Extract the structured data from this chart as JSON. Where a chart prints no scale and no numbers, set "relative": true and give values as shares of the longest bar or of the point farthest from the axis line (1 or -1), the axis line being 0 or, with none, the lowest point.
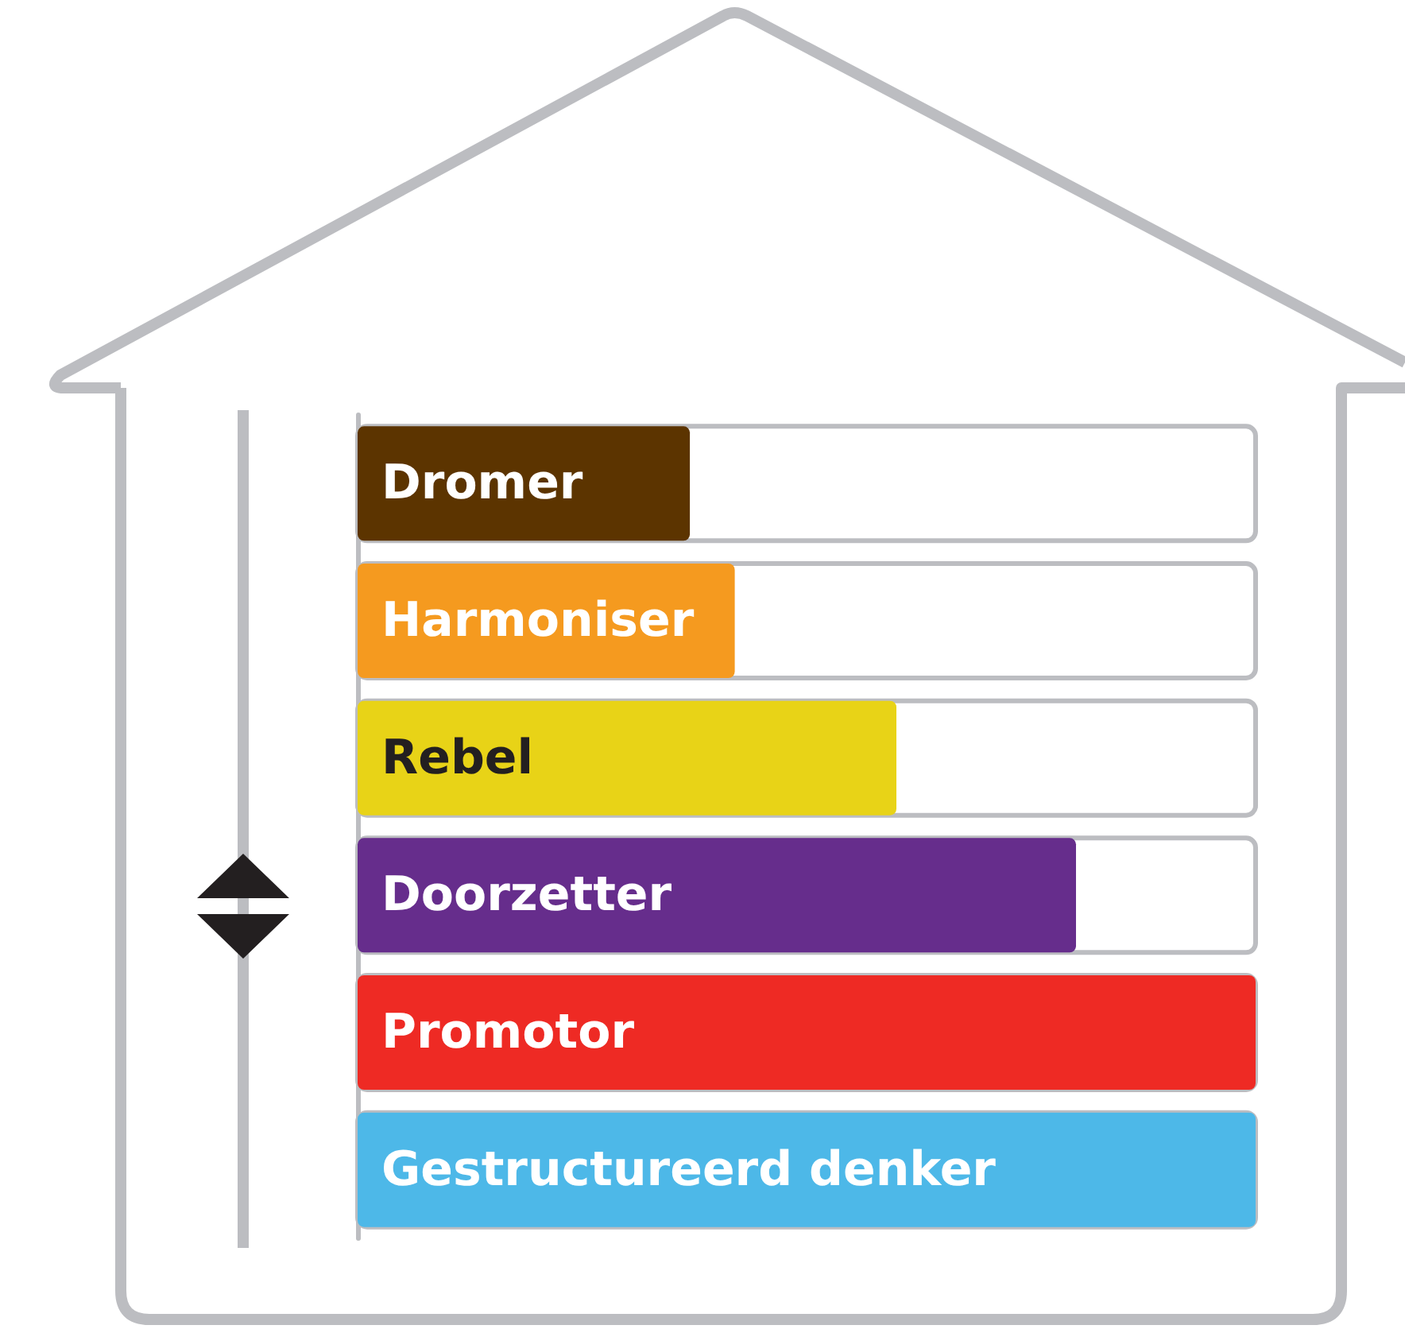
{
  "chart_data": {
    "type": "bar",
    "orientation": "horizontal",
    "relative": true,
    "categories": [
      "Dromer",
      "Harmoniser",
      "Rebel",
      "Doorzetter",
      "Promotor",
      "Gestructureerd denker"
    ],
    "values": [
      0.37,
      0.42,
      0.6,
      0.8,
      1,
      1
    ],
    "colors": [
      "#5c3400",
      "#f59a1f",
      "#e8d317",
      "#662d8c",
      "#ee2a24",
      "#4db8e8"
    ]
  }
}
